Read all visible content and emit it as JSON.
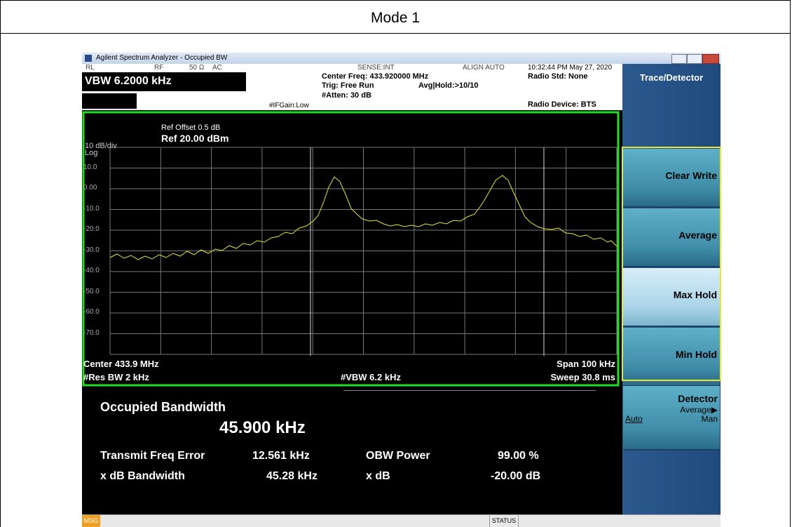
{
  "title": "Mode 1",
  "window": {
    "title": "Agilent Spectrum Analyzer - Occupied BW"
  },
  "header": {
    "rl": "RL",
    "rf": "RF",
    "impedance": "50 Ω",
    "coupling": "AC",
    "sense": "SENSE:INT",
    "align": "ALIGN AUTO",
    "datetime": "10:32:44 PM May 27, 2020",
    "active_function": "VBW 6.2000 kHz",
    "center_freq": "Center Freq: 433.920000 MHz",
    "trig": "Trig: Free Run",
    "avg_hold": "Avg|Hold:>10/10",
    "if_gain": "#IFGain:Low",
    "atten": "#Atten: 30 dB",
    "radio_std": "Radio Std: None",
    "radio_device": "Radio Device: BTS"
  },
  "graph": {
    "scale": "10 dB/div",
    "log": "Log",
    "ref_offset": "Ref Offset 0.5 dB",
    "ref_level": "Ref 20.00 dBm",
    "y_labels": [
      "10.0",
      "0.00",
      "-10.0",
      "-20.0",
      "-30.0",
      "-40.0",
      "-50.0",
      "-60.0",
      "-70.0"
    ],
    "center": "Center 433.9 MHz",
    "res_bw": "#Res BW 2 kHz",
    "vbw": "#VBW 6.2 kHz",
    "span": "Span 100 kHz",
    "sweep": "Sweep 30.8 ms"
  },
  "results": {
    "heading": "Occupied Bandwidth",
    "obw": "45.900 kHz",
    "rows": [
      [
        "Transmit Freq Error",
        "12.561 kHz",
        "OBW Power",
        "99.00 %"
      ],
      [
        "x dB Bandwidth",
        "45.28 kHz",
        "x dB",
        "-20.00 dB"
      ]
    ]
  },
  "softkeys": {
    "menu": "Trace/Detector",
    "buttons": [
      "Clear Write",
      "Average",
      "Max Hold",
      "Min Hold"
    ],
    "detector": {
      "label": "Detector",
      "value": "Average▶",
      "auto": "Auto",
      "man": "Man"
    }
  },
  "status": {
    "msg": "MSG",
    "status": "STATUS"
  }
}
